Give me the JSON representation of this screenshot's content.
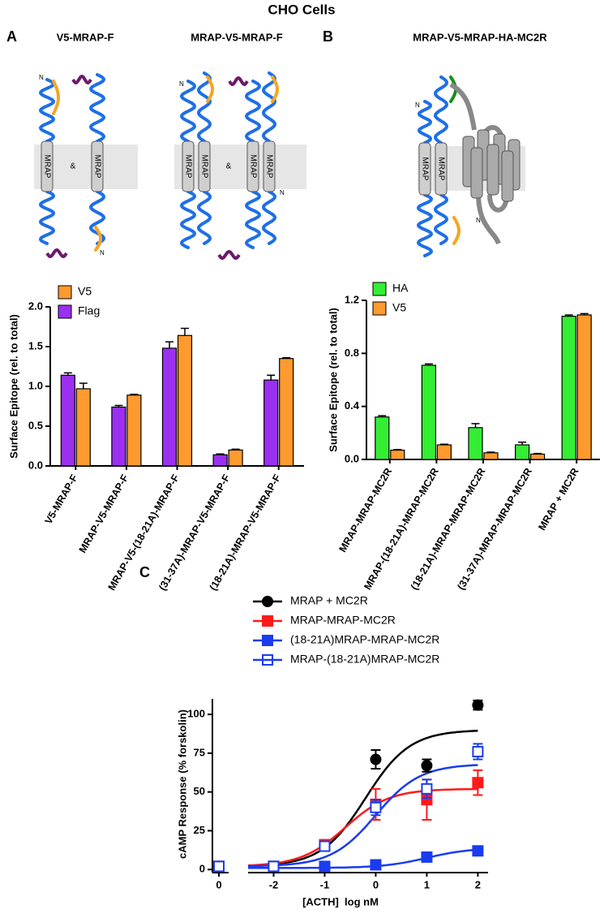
{
  "figure": {
    "title": "CHO Cells",
    "panels": [
      "A",
      "B",
      "C"
    ],
    "diagrams": [
      {
        "label": "V5-MRAP-F"
      },
      {
        "label": "MRAP-V5-MRAP-F"
      },
      {
        "label": "MRAP-V5-MRAP-HA-MC2R"
      }
    ],
    "helix_label": "MRAP",
    "and": "&",
    "n_terminus": "N"
  },
  "chart_data": [
    {
      "type": "bar",
      "ylabel": "Surface Epitope (rel. to total)",
      "categories": [
        "V5-MRAP-F",
        "MRAP-V5-MRAP-F",
        "MRAP-V5-(18-21A)-MRAP-F",
        "(31-37A)-MRAP-V5-MRAP-F",
        "(18-21A)-MRAP-V5-MRAP-F"
      ],
      "series": [
        {
          "name": "Flag",
          "color": "#9b30f0",
          "values": [
            1.14,
            0.74,
            1.48,
            0.14,
            1.08
          ],
          "errors": [
            0.03,
            0.02,
            0.08,
            0.01,
            0.06
          ]
        },
        {
          "name": "V5",
          "color": "#ff9a2e",
          "values": [
            0.97,
            0.89,
            1.64,
            0.2,
            1.35
          ],
          "errors": [
            0.07,
            0.01,
            0.09,
            0.01,
            0.01
          ]
        }
      ],
      "ylim": [
        0,
        2
      ],
      "yticks": [
        {
          "value": 0,
          "label": "0.0"
        },
        {
          "value": 0.5,
          "label": "0.5"
        },
        {
          "value": 1,
          "label": "1.0"
        },
        {
          "value": 1.5,
          "label": "1.5"
        },
        {
          "value": 2,
          "label": "2.0"
        }
      ]
    },
    {
      "type": "bar",
      "ylabel": "Surface Epitope (rel. to total)",
      "categories": [
        "MRAP-MRAP-MC2R",
        "MRAP-(18-21A)-MRAP-MC2R",
        "(18-21A)-MRAP-MRAP-MC2R",
        "(31-37A)-MRAP-MRAP-MC2R",
        "MRAP + MC2R"
      ],
      "series": [
        {
          "name": "HA",
          "color": "#33ee33",
          "values": [
            0.32,
            0.71,
            0.24,
            0.11,
            1.08
          ],
          "errors": [
            0.01,
            0.01,
            0.03,
            0.02,
            0.01
          ]
        },
        {
          "name": "V5",
          "color": "#ff9a2e",
          "values": [
            0.07,
            0.11,
            0.05,
            0.04,
            1.09
          ],
          "errors": [
            0.005,
            0.005,
            0.005,
            0.005,
            0.01
          ]
        }
      ],
      "ylim": [
        0,
        1.2
      ],
      "yticks": [
        {
          "value": 0,
          "label": "0.0"
        },
        {
          "value": 0.4,
          "label": "0.4"
        },
        {
          "value": 0.8,
          "label": "0.8"
        },
        {
          "value": 1.2,
          "label": "1.2"
        }
      ]
    },
    {
      "type": "dose-response",
      "xlabel": "[ACTH]  log nM",
      "ylabel": "cAMP Response (% forskolin)",
      "control_label": "0",
      "x": [
        -2,
        -1,
        0,
        1,
        2
      ],
      "xlim": [
        -2.5,
        2.2
      ],
      "xticks": [
        -2,
        -1,
        0,
        1,
        2
      ],
      "ylim": [
        -2,
        110
      ],
      "yticks": [
        0,
        25,
        50,
        75,
        100
      ],
      "series": [
        {
          "name": "MRAP + MC2R",
          "color": "#000000",
          "marker": "circle",
          "control": 2,
          "values": [
            2,
            16,
            71,
            67,
            106
          ],
          "errors": [
            1,
            2,
            6,
            4,
            3
          ],
          "fit": {
            "bottom": 2,
            "top": 90,
            "log_ec50": -0.2
          }
        },
        {
          "name": "MRAP-MRAP-MC2R",
          "color": "#ff1a1a",
          "marker": "square",
          "control": 2,
          "values": [
            2,
            16,
            42,
            45,
            56
          ],
          "errors": [
            1,
            2,
            10,
            13,
            8
          ],
          "fit": {
            "bottom": 2,
            "top": 52,
            "log_ec50": -0.6
          }
        },
        {
          "name": "(18-21A)MRAP-MRAP-MC2R",
          "color": "#1a3cf0",
          "marker": "square",
          "control": 2,
          "values": [
            2,
            2,
            3,
            8,
            12
          ],
          "errors": [
            1,
            1,
            1,
            1,
            2
          ],
          "fit": {
            "bottom": 1,
            "top": 14,
            "log_ec50": 1
          }
        },
        {
          "name": "MRAP-(18-21A)MRAP-MC2R",
          "color": "#1a3cf0",
          "marker": "open-square",
          "control": 2,
          "values": [
            2,
            15,
            40,
            52,
            76
          ],
          "errors": [
            1,
            2,
            5,
            6,
            5
          ],
          "fit": {
            "bottom": 2,
            "top": 68,
            "log_ec50": 0
          }
        }
      ]
    }
  ]
}
